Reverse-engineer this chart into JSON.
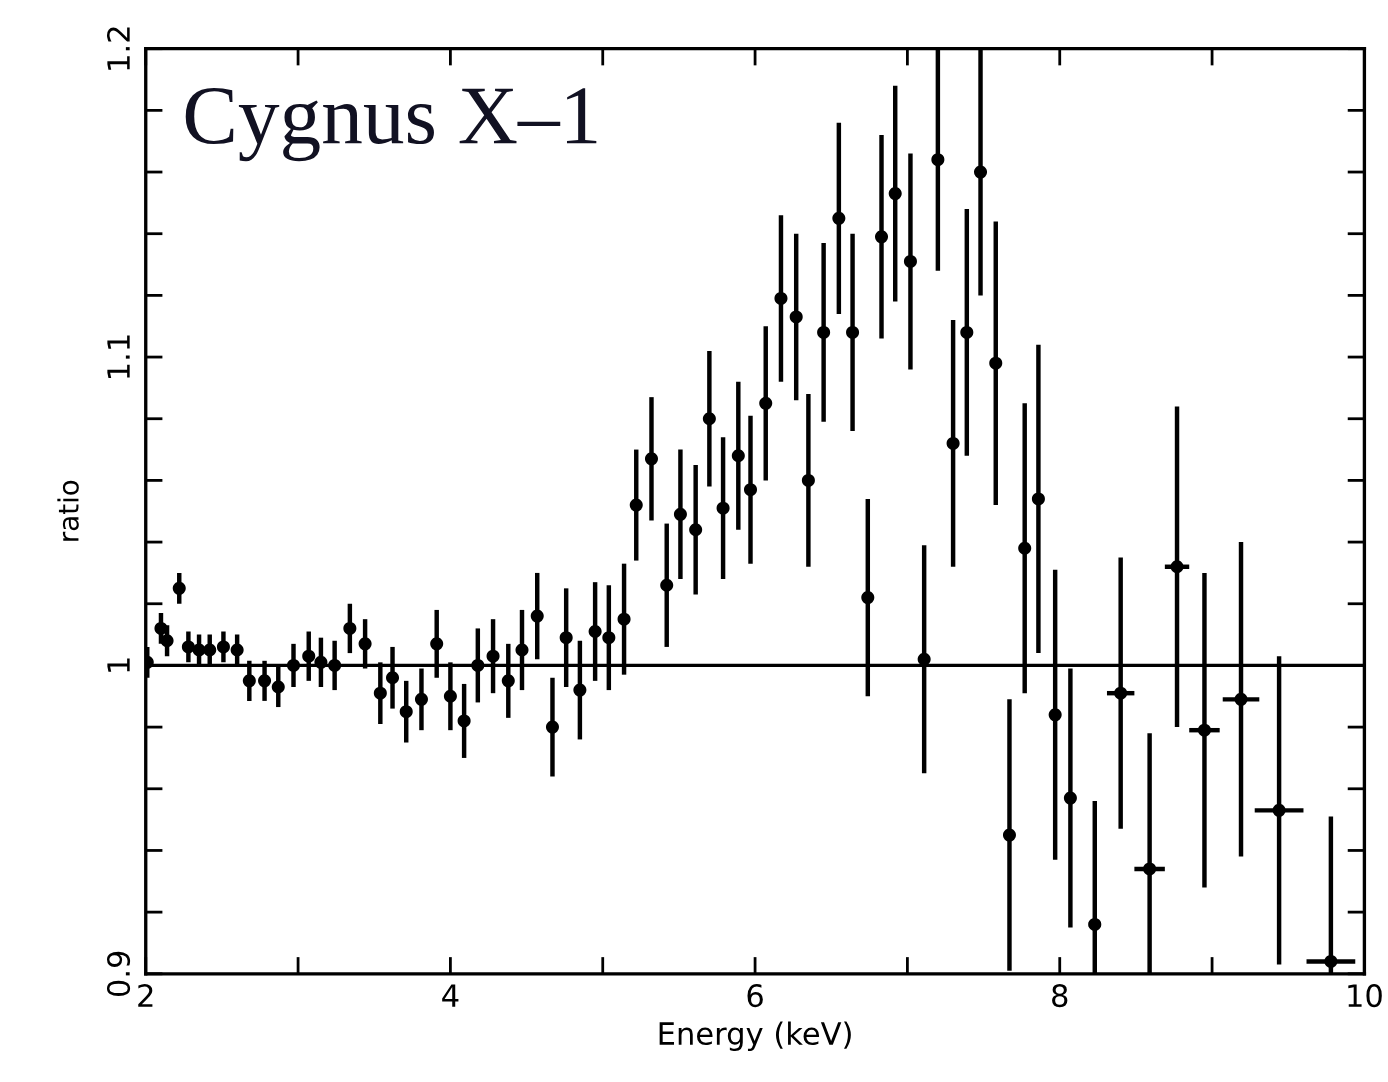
{
  "chart_data": {
    "type": "scatter",
    "xlabel": "Energy (keV)",
    "ylabel": "ratio",
    "annotations": [
      "Cygnus X–1"
    ],
    "xlim": [
      2,
      10
    ],
    "ylim": [
      0.9,
      1.2
    ],
    "xticks": [
      2,
      {
        "value": 3,
        "label": null
      },
      4,
      {
        "value": 5,
        "label": null
      },
      6,
      {
        "value": 7,
        "label": null
      },
      8,
      {
        "value": 9,
        "label": null
      },
      10
    ],
    "yticks": [
      0.9,
      {
        "value": 0.92,
        "label": null
      },
      {
        "value": 0.94,
        "label": null
      },
      {
        "value": 0.96,
        "label": null
      },
      {
        "value": 0.98,
        "label": null
      },
      {
        "value": 1,
        "label": "1"
      },
      {
        "value": 1.02,
        "label": null
      },
      {
        "value": 1.04,
        "label": null
      },
      {
        "value": 1.06,
        "label": null
      },
      {
        "value": 1.08,
        "label": null
      },
      1.1,
      {
        "value": 1.12,
        "label": null
      },
      {
        "value": 1.14,
        "label": null
      },
      {
        "value": 1.16,
        "label": null
      },
      {
        "value": 1.18,
        "label": null
      },
      1.2
    ],
    "grid": false,
    "legend": false,
    "marker": "circle",
    "ref_lines": [
      {
        "axis": "y",
        "value": 1,
        "label": null,
        "color": "#000000"
      }
    ],
    "series": [
      {
        "color": "#000000",
        "x": [
          2.01,
          2.1,
          2.14,
          2.22,
          2.28,
          2.35,
          2.42,
          2.51,
          2.6,
          2.68,
          2.78,
          2.87,
          2.97,
          3.07,
          3.15,
          3.24,
          3.34,
          3.44,
          3.54,
          3.62,
          3.71,
          3.81,
          3.91,
          4.0,
          4.09,
          4.18,
          4.28,
          4.38,
          4.47,
          4.57,
          4.67,
          4.76,
          4.85,
          4.95,
          5.04,
          5.14,
          5.22,
          5.32,
          5.42,
          5.51,
          5.61,
          5.7,
          5.79,
          5.89,
          5.97,
          6.07,
          6.17,
          6.27,
          6.35,
          6.45,
          6.55,
          6.64,
          6.74,
          6.83,
          6.92,
          7.02,
          7.11,
          7.2,
          7.3,
          7.39,
          7.48,
          7.58,
          7.67,
          7.77,
          7.86,
          7.97,
          8.07,
          8.23,
          8.4,
          8.59,
          8.77,
          8.95,
          9.19,
          9.44,
          9.78
        ],
        "values": [
          1.001,
          1.012,
          1.008,
          1.025,
          1.006,
          1.005,
          1.005,
          1.006,
          1.005,
          0.995,
          0.995,
          0.993,
          1.0,
          1.003,
          1.001,
          1.0,
          1.012,
          1.007,
          0.991,
          0.996,
          0.985,
          0.989,
          1.007,
          0.99,
          0.982,
          1.0,
          1.003,
          0.995,
          1.005,
          1.016,
          0.98,
          1.009,
          0.992,
          1.011,
          1.009,
          1.015,
          1.052,
          1.067,
          1.026,
          1.049,
          1.044,
          1.08,
          1.051,
          1.068,
          1.057,
          1.085,
          1.119,
          1.113,
          1.06,
          1.108,
          1.145,
          1.108,
          1.022,
          1.139,
          1.153,
          1.131,
          1.002,
          1.164,
          1.072,
          1.108,
          1.16,
          1.098,
          0.945,
          1.038,
          1.054,
          0.984,
          0.957,
          0.916,
          0.991,
          0.934,
          1.032,
          0.979,
          0.989,
          0.953,
          0.904
        ],
        "errors": [
          0.005,
          0.005,
          0.005,
          0.005,
          0.005,
          0.005,
          0.005,
          0.005,
          0.005,
          0.0065,
          0.0065,
          0.0065,
          0.007,
          0.008,
          0.008,
          0.008,
          0.008,
          0.008,
          0.01,
          0.01,
          0.01,
          0.01,
          0.011,
          0.011,
          0.012,
          0.012,
          0.012,
          0.012,
          0.013,
          0.014,
          0.016,
          0.016,
          0.016,
          0.016,
          0.017,
          0.018,
          0.018,
          0.02,
          0.02,
          0.021,
          0.021,
          0.022,
          0.023,
          0.024,
          0.024,
          0.025,
          0.027,
          0.027,
          0.028,
          0.029,
          0.031,
          0.032,
          0.032,
          0.033,
          0.035,
          0.035,
          0.037,
          0.036,
          0.04,
          0.04,
          0.04,
          0.046,
          0.044,
          0.047,
          0.05,
          0.047,
          0.042,
          [
            0.9,
            0.956
          ],
          0.044,
          [
            0.9,
            0.978
          ],
          0.052,
          0.051,
          0.051,
          0.05,
          [
            0.9,
            0.951
          ]
        ],
        "xerrors": [
          null,
          null,
          null,
          null,
          null,
          null,
          null,
          null,
          null,
          null,
          null,
          null,
          null,
          null,
          null,
          null,
          null,
          null,
          null,
          null,
          null,
          null,
          null,
          null,
          null,
          null,
          null,
          null,
          null,
          null,
          null,
          null,
          null,
          null,
          null,
          null,
          null,
          null,
          null,
          null,
          null,
          null,
          null,
          null,
          null,
          null,
          null,
          null,
          null,
          null,
          null,
          null,
          null,
          null,
          null,
          null,
          null,
          null,
          null,
          null,
          null,
          null,
          null,
          null,
          null,
          null,
          null,
          0.04,
          0.09,
          0.1,
          0.08,
          0.1,
          0.12,
          0.16,
          0.16
        ]
      }
    ]
  }
}
